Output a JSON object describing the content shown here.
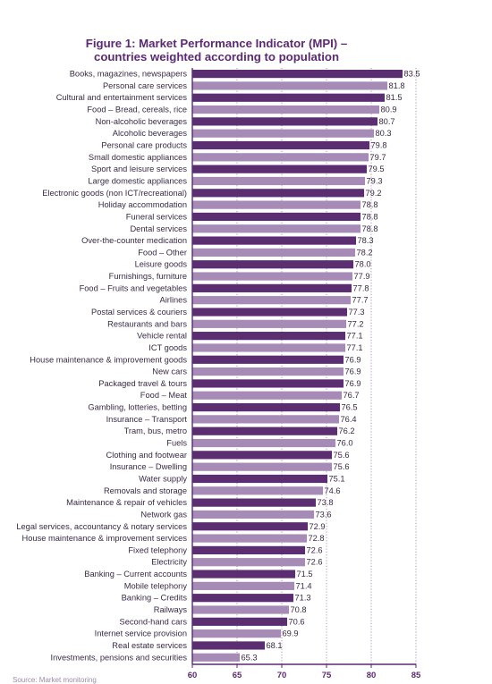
{
  "chart_data": {
    "type": "bar",
    "orientation": "horizontal",
    "title": "Figure 1: Market Performance Indicator (MPI) – countries weighted according to population",
    "title_lines": [
      "Figure 1: Market Performance Indicator (MPI) –",
      "countries weighted according to population"
    ],
    "xlabel": "",
    "ylabel": "",
    "xlim": [
      60,
      85
    ],
    "xticks": [
      60,
      65,
      70,
      75,
      80,
      85
    ],
    "grid": "vertical dotted",
    "legend": "none",
    "colors": {
      "dark": "#5b2e72",
      "light": "#a58bb5",
      "title": "#5a2a73"
    },
    "categories": [
      "Books, magazines, newspapers",
      "Personal care services",
      "Cultural and entertainment services",
      "Food – Bread, cereals, rice",
      "Non-alcoholic beverages",
      "Alcoholic beverages",
      "Personal care products",
      "Small domestic appliances",
      "Sport and leisure services",
      "Large domestic appliances",
      "Electronic goods (non ICT/recreational)",
      "Holiday accommodation",
      "Funeral services",
      "Dental services",
      "Over-the-counter medication",
      "Food – Other",
      "Leisure goods",
      "Furnishings, furniture",
      "Food – Fruits and vegetables",
      "Airlines",
      "Postal services & couriers",
      "Restaurants and bars",
      "Vehicle rental",
      "ICT goods",
      "House maintenance & improvement goods",
      "New cars",
      "Packaged travel & tours",
      "Food – Meat",
      "Gambling, lotteries, betting",
      "Insurance – Transport",
      "Tram, bus, metro",
      "Fuels",
      "Clothing and footwear",
      "Insurance – Dwelling",
      "Water supply",
      "Removals and storage",
      "Maintenance & repair of vehicles",
      "Network gas",
      "Legal services, accountancy & notary services",
      "House maintenance & improvement services",
      "Fixed telephony",
      "Electricity",
      "Banking – Current accounts",
      "Mobile telephony",
      "Banking – Credits",
      "Railways",
      "Second-hand cars",
      "Internet service provision",
      "Real estate services",
      "Investments, pensions and securities"
    ],
    "values": [
      83.5,
      81.8,
      81.5,
      80.9,
      80.7,
      80.3,
      79.8,
      79.7,
      79.5,
      79.3,
      79.2,
      78.8,
      78.8,
      78.8,
      78.3,
      78.2,
      78.0,
      77.9,
      77.8,
      77.7,
      77.3,
      77.2,
      77.1,
      77.1,
      76.9,
      76.9,
      76.9,
      76.7,
      76.5,
      76.4,
      76.2,
      76.0,
      75.6,
      75.6,
      75.1,
      74.6,
      73.8,
      73.6,
      72.9,
      72.8,
      72.6,
      72.6,
      71.5,
      71.4,
      71.3,
      70.8,
      70.6,
      69.9,
      68.1,
      65.3
    ],
    "value_labels": [
      "83.5",
      "81.8",
      "81.5",
      "80.9",
      "80.7",
      "80.3",
      "79.8",
      "79.7",
      "79.5",
      "79.3",
      "79.2",
      "78.8",
      "78.8",
      "78.8",
      "78.3",
      "78.2",
      "78.0",
      "77.9",
      "77.8",
      "77.7",
      "77.3",
      "77.2",
      "77.1",
      "77.1",
      "76.9",
      "76.9",
      "76.9",
      "76.7",
      "76.5",
      "76.4",
      "76.2",
      "76.0",
      "75.6",
      "75.6",
      "75.1",
      "74.6",
      "73.8",
      "73.6",
      "72.9",
      "72.8",
      "72.6",
      "72.6",
      "71.5",
      "71.4",
      "71.3",
      "70.8",
      "70.6",
      "69.9",
      "68.1",
      "65.3"
    ],
    "bar_shade": [
      "dark",
      "light",
      "dark",
      "light",
      "dark",
      "light",
      "dark",
      "light",
      "dark",
      "light",
      "dark",
      "light",
      "dark",
      "light",
      "dark",
      "light",
      "dark",
      "light",
      "dark",
      "light",
      "dark",
      "light",
      "dark",
      "light",
      "dark",
      "light",
      "dark",
      "light",
      "dark",
      "light",
      "dark",
      "light",
      "dark",
      "light",
      "dark",
      "light",
      "dark",
      "light",
      "dark",
      "light",
      "dark",
      "light",
      "dark",
      "light",
      "dark",
      "light",
      "dark",
      "light",
      "dark",
      "light"
    ]
  },
  "footer": {
    "source_note": "Source: Market monitoring"
  }
}
